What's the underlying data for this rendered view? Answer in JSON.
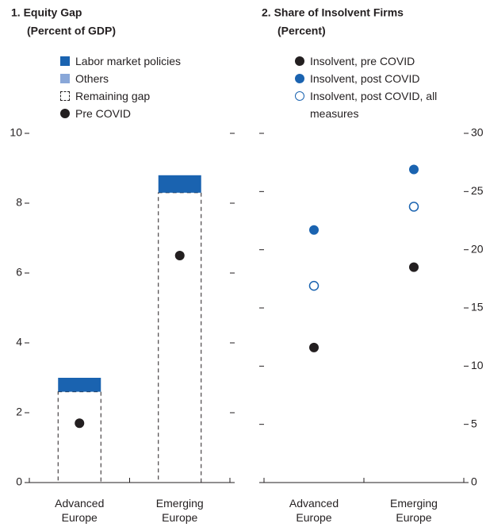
{
  "chart_data": [
    {
      "type": "bar",
      "title": "1. Equity Gap",
      "subtitle": "(Percent of GDP)",
      "categories": [
        "Advanced Europe",
        "Emerging Europe"
      ],
      "series": [
        {
          "name": "Labor market policies",
          "color": "#1a63b0",
          "values": [
            0.4,
            0.5
          ]
        },
        {
          "name": "Others",
          "color": "#89a7d8",
          "values": [
            0,
            0
          ]
        },
        {
          "name": "Remaining gap",
          "color": "#231f20",
          "style": "dashed",
          "values": [
            2.6,
            8.3
          ]
        },
        {
          "name": "Pre COVID",
          "color": "#231f20",
          "marker": "dot",
          "values": [
            1.7,
            6.5
          ]
        }
      ],
      "ylim": [
        0,
        10
      ],
      "yticks": [
        0,
        2,
        4,
        6,
        8,
        10
      ]
    },
    {
      "type": "scatter",
      "title": "2. Share of Insolvent Firms",
      "subtitle": "(Percent)",
      "categories": [
        "Advanced Europe",
        "Emerging Europe"
      ],
      "series": [
        {
          "name": "Insolvent, pre COVID",
          "color": "#231f20",
          "marker": "filled",
          "values": [
            11.6,
            18.5
          ]
        },
        {
          "name": "Insolvent, post COVID",
          "color": "#1a63b0",
          "marker": "filled",
          "values": [
            21.7,
            26.9
          ]
        },
        {
          "name": "Insolvent, post COVID, all measures",
          "color": "#1a63b0",
          "marker": "open",
          "values": [
            16.9,
            23.7
          ]
        }
      ],
      "ylim": [
        0,
        30
      ],
      "yticks": [
        0,
        5,
        10,
        15,
        20,
        25,
        30
      ],
      "y_axis_side": "right"
    }
  ]
}
